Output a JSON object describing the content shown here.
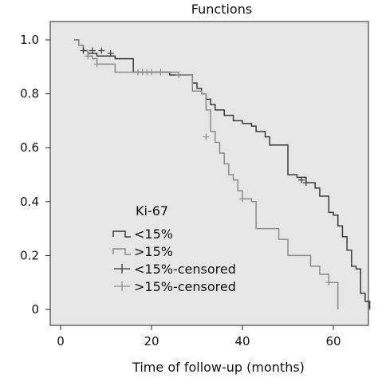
{
  "chart_data": {
    "type": "line",
    "title": "Functions",
    "xlabel": "Time of follow-up (months)",
    "ylabel": "",
    "xlim": [
      0,
      70
    ],
    "ylim": [
      0,
      1.05
    ],
    "xticks": [
      0,
      20,
      40,
      60
    ],
    "xtick_labels": [
      "0",
      "20",
      "40",
      "60"
    ],
    "yticks": [
      0,
      0.2,
      0.4,
      0.6,
      0.8,
      1.0
    ],
    "ytick_labels": [
      "0",
      "0.2",
      "0.4",
      "0.6",
      "0.8",
      "1.0"
    ],
    "grid": false,
    "plot_background": "#e6e6e6",
    "legend": {
      "title": "Ki-67",
      "placement": "lower-left",
      "entries": [
        "<15%",
        ">15%",
        "<15%-censored",
        ">15%-censored"
      ]
    },
    "series": [
      {
        "name": "<15%",
        "color": "#3a3a3a",
        "style": "step",
        "x": [
          3,
          4,
          5,
          6,
          8,
          12,
          16,
          24,
          29,
          30,
          31,
          32,
          33,
          34,
          36,
          38,
          40,
          42,
          43,
          45,
          46,
          48,
          50,
          52,
          54,
          56,
          57,
          59,
          60,
          61,
          62,
          63,
          64,
          65,
          66,
          67,
          68
        ],
        "y": [
          1.0,
          0.98,
          0.96,
          0.95,
          0.94,
          0.93,
          0.88,
          0.87,
          0.84,
          0.82,
          0.8,
          0.78,
          0.76,
          0.74,
          0.72,
          0.7,
          0.69,
          0.68,
          0.66,
          0.64,
          0.61,
          0.61,
          0.5,
          0.49,
          0.47,
          0.45,
          0.42,
          0.36,
          0.35,
          0.31,
          0.27,
          0.22,
          0.16,
          0.15,
          0.06,
          0.03,
          0.0
        ]
      },
      {
        "name": ">15%",
        "color": "#8c8c8c",
        "style": "step",
        "x": [
          3,
          4,
          5,
          6,
          7,
          8,
          12,
          26,
          29,
          31,
          32,
          33,
          34,
          35,
          36,
          37,
          38,
          39,
          40,
          42,
          43,
          48,
          50,
          51,
          55,
          57,
          59,
          60,
          61
        ],
        "y": [
          1.0,
          0.98,
          0.96,
          0.94,
          0.93,
          0.91,
          0.88,
          0.87,
          0.81,
          0.8,
          0.74,
          0.66,
          0.62,
          0.58,
          0.54,
          0.5,
          0.48,
          0.44,
          0.41,
          0.4,
          0.3,
          0.26,
          0.2,
          0.2,
          0.16,
          0.13,
          0.1,
          0.1,
          0.0
        ]
      }
    ],
    "censored": [
      {
        "series": "<15%-censored",
        "color": "#3a3a3a",
        "x": [
          5,
          7,
          9,
          11,
          53,
          54
        ],
        "y": [
          0.96,
          0.96,
          0.96,
          0.95,
          0.48,
          0.47
        ]
      },
      {
        "series": ">15%-censored",
        "color": "#8c8c8c",
        "x": [
          6,
          8,
          17,
          18,
          19,
          20,
          22,
          26,
          32,
          40,
          59
        ],
        "y": [
          0.94,
          0.91,
          0.88,
          0.88,
          0.88,
          0.88,
          0.88,
          0.87,
          0.64,
          0.41,
          0.1
        ]
      }
    ]
  }
}
